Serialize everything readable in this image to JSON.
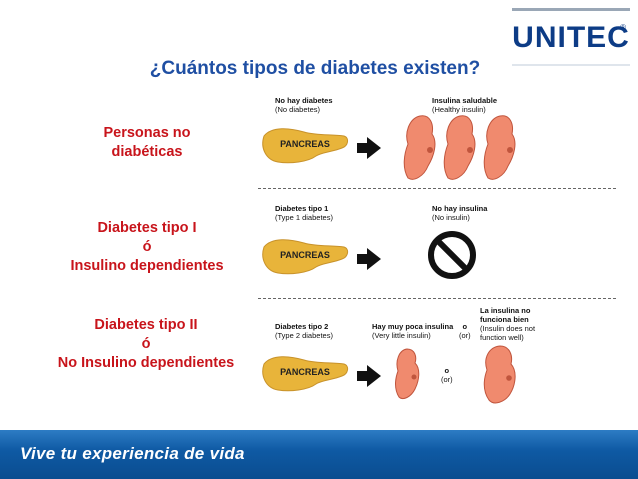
{
  "logo": {
    "text": "UNITEC",
    "reg": "®"
  },
  "title": "¿Cuántos tipos de diabetes existen?",
  "categories": {
    "no_diabetes": {
      "line1": "Personas no",
      "line2": "diabéticas"
    },
    "type1": {
      "line1": "Diabetes tipo I",
      "line2": "ó",
      "line3": "Insulino dependientes"
    },
    "type2": {
      "line1": "Diabetes tipo II",
      "line2": "ó",
      "line3": "No Insulino dependientes"
    }
  },
  "diagram": {
    "row1": {
      "label_es": "No hay diabetes",
      "label_en": "(No diabetes)",
      "result_es": "Insulina saludable",
      "result_en": "(Healthy insulin)",
      "pancreas": "PANCREAS"
    },
    "row2": {
      "label_es": "Diabetes tipo 1",
      "label_en": "(Type 1 diabetes)",
      "result_es": "No hay insulina",
      "result_en": "(No insulin)",
      "pancreas": "PANCREAS"
    },
    "row3": {
      "label_es": "Diabetes tipo 2",
      "label_en": "(Type 2 diabetes)",
      "mid_es": "Hay muy poca insulina",
      "mid_en": "(Very little insulin)",
      "or1": "o",
      "or1_en": "(or)",
      "or2": "o",
      "or2_en": "(or)",
      "result_es_1": "La insulina no",
      "result_es_2": "funciona bien",
      "result_en_1": "(Insulin does not",
      "result_en_2": "function well)",
      "pancreas": "PANCREAS"
    }
  },
  "colors": {
    "accent_red": "#c8141b",
    "title_blue": "#1f4fa3",
    "footer_blue": "#0f5aa4",
    "pancreas": "#e8b43a",
    "insulin": "#f08a6e"
  },
  "footer": {
    "slogan": "Vive tu experiencia de vida"
  }
}
